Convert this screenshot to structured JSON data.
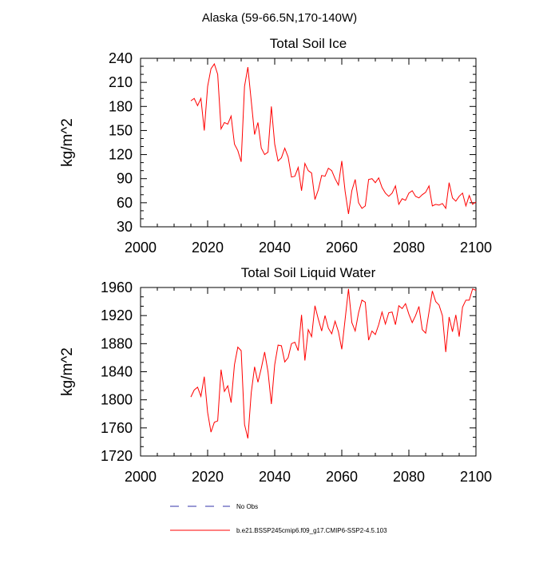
{
  "suptitle": "Alaska (59-66.5N,170-140W)",
  "legend": {
    "entries": [
      {
        "label": "No Obs",
        "color": "#3333aa",
        "style": "dashed"
      },
      {
        "label": "b.e21.BSSP245cmip6.f09_g17.CMIP6-SSP2-4.5.103",
        "color": "#ff0000",
        "style": "solid"
      }
    ]
  },
  "chart_data": [
    {
      "type": "line",
      "title": "Total Soil Ice",
      "xlabel": "",
      "ylabel": "kg/m^2",
      "xlim": [
        2000,
        2100
      ],
      "ylim": [
        30,
        240
      ],
      "xticks": [
        2000,
        2020,
        2040,
        2060,
        2080,
        2100
      ],
      "yticks": [
        30,
        60,
        90,
        120,
        150,
        180,
        210,
        240
      ],
      "grid": false,
      "series": [
        {
          "name": "b.e21.BSSP245cmip6.f09_g17.CMIP6-SSP2-4.5.103",
          "color": "#ff0000",
          "x": [
            2015,
            2016,
            2017,
            2018,
            2019,
            2020,
            2021,
            2022,
            2023,
            2024,
            2025,
            2026,
            2027,
            2028,
            2029,
            2030,
            2031,
            2032,
            2033,
            2034,
            2035,
            2036,
            2037,
            2038,
            2039,
            2040,
            2041,
            2042,
            2043,
            2044,
            2045,
            2046,
            2047,
            2048,
            2049,
            2050,
            2051,
            2052,
            2053,
            2054,
            2055,
            2056,
            2057,
            2058,
            2059,
            2060,
            2061,
            2062,
            2063,
            2064,
            2065,
            2066,
            2067,
            2068,
            2069,
            2070,
            2071,
            2072,
            2073,
            2074,
            2075,
            2076,
            2077,
            2078,
            2079,
            2080,
            2081,
            2082,
            2083,
            2084,
            2085,
            2086,
            2087,
            2088,
            2089,
            2090,
            2091,
            2092,
            2093,
            2094,
            2095,
            2096,
            2097,
            2098,
            2099,
            2100
          ],
          "values": [
            187,
            190,
            181,
            190,
            150,
            205,
            227,
            233,
            220,
            152,
            160,
            158,
            168,
            133,
            125,
            111,
            205,
            229,
            187,
            145,
            160,
            128,
            120,
            123,
            180,
            133,
            112,
            116,
            128,
            117,
            92,
            93,
            104,
            75,
            109,
            100,
            97,
            64,
            76,
            94,
            93,
            103,
            100,
            90,
            82,
            112,
            74,
            46,
            75,
            89,
            60,
            53,
            56,
            89,
            90,
            85,
            91,
            79,
            72,
            68,
            72,
            81,
            58,
            65,
            63,
            72,
            75,
            68,
            66,
            70,
            73,
            81,
            56,
            58,
            57,
            59,
            53,
            85,
            66,
            62,
            68,
            72,
            56,
            69,
            58,
            61
          ]
        }
      ]
    },
    {
      "type": "line",
      "title": "Total Soil Liquid Water",
      "xlabel": "",
      "ylabel": "kg/m^2",
      "xlim": [
        2000,
        2100
      ],
      "ylim": [
        1720,
        1960
      ],
      "xticks": [
        2000,
        2020,
        2040,
        2060,
        2080,
        2100
      ],
      "yticks": [
        1720,
        1760,
        1800,
        1840,
        1880,
        1920,
        1960
      ],
      "grid": false,
      "series": [
        {
          "name": "b.e21.BSSP245cmip6.f09_g17.CMIP6-SSP2-4.5.103",
          "color": "#ff0000",
          "x": [
            2015,
            2016,
            2017,
            2018,
            2019,
            2020,
            2021,
            2022,
            2023,
            2024,
            2025,
            2026,
            2027,
            2028,
            2029,
            2030,
            2031,
            2032,
            2033,
            2034,
            2035,
            2036,
            2037,
            2038,
            2039,
            2040,
            2041,
            2042,
            2043,
            2044,
            2045,
            2046,
            2047,
            2048,
            2049,
            2050,
            2051,
            2052,
            2053,
            2054,
            2055,
            2056,
            2057,
            2058,
            2059,
            2060,
            2061,
            2062,
            2063,
            2064,
            2065,
            2066,
            2067,
            2068,
            2069,
            2070,
            2071,
            2072,
            2073,
            2074,
            2075,
            2076,
            2077,
            2078,
            2079,
            2080,
            2081,
            2082,
            2083,
            2084,
            2085,
            2086,
            2087,
            2088,
            2089,
            2090,
            2091,
            2092,
            2093,
            2094,
            2095,
            2096,
            2097,
            2098,
            2099,
            2100
          ],
          "values": [
            1804,
            1814,
            1818,
            1805,
            1833,
            1782,
            1754,
            1768,
            1770,
            1843,
            1812,
            1820,
            1796,
            1850,
            1875,
            1870,
            1765,
            1745,
            1810,
            1847,
            1825,
            1845,
            1868,
            1840,
            1794,
            1850,
            1878,
            1877,
            1854,
            1860,
            1880,
            1882,
            1870,
            1921,
            1856,
            1900,
            1890,
            1934,
            1915,
            1898,
            1920,
            1902,
            1894,
            1912,
            1897,
            1872,
            1915,
            1958,
            1910,
            1898,
            1924,
            1942,
            1939,
            1885,
            1898,
            1893,
            1907,
            1925,
            1908,
            1924,
            1925,
            1907,
            1934,
            1930,
            1937,
            1922,
            1910,
            1920,
            1933,
            1900,
            1895,
            1925,
            1955,
            1940,
            1935,
            1920,
            1868,
            1918,
            1897,
            1921,
            1890,
            1932,
            1942,
            1942,
            1958,
            1956
          ]
        }
      ]
    }
  ]
}
